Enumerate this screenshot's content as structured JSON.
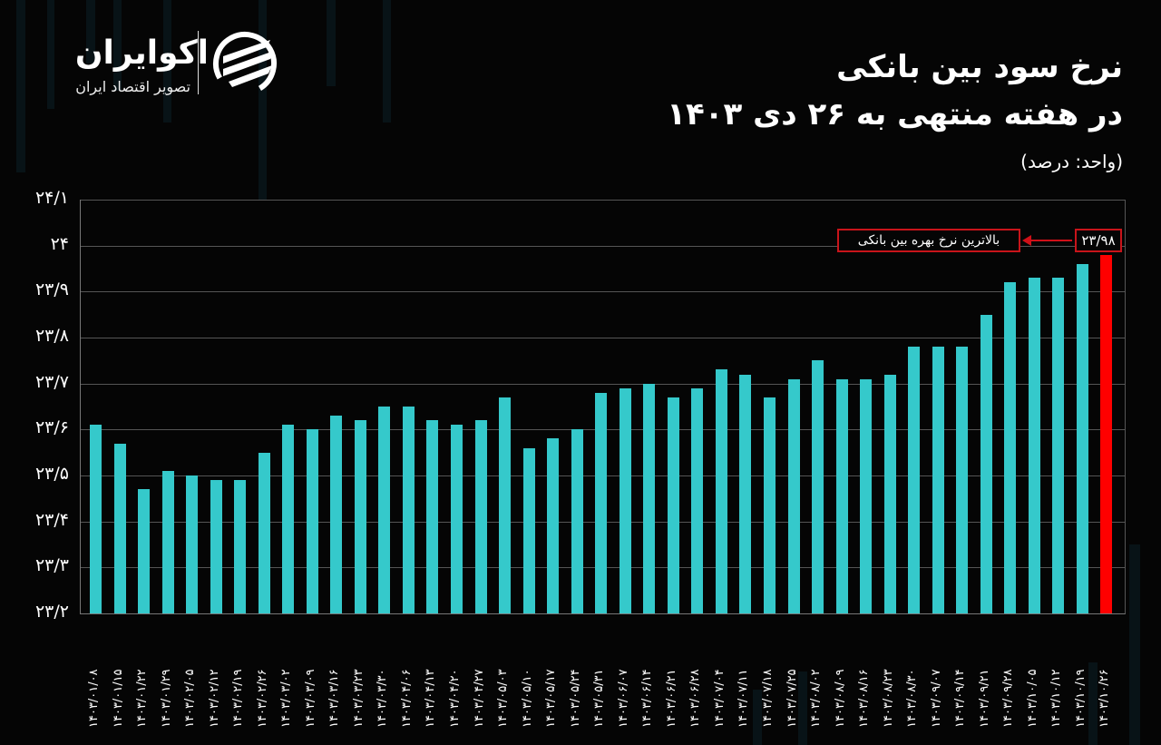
{
  "brand": {
    "name": "اکوایران",
    "tagline": "تصویر اقتصاد ایران"
  },
  "header": {
    "title_line1": "نرخ سود بین بانکی",
    "title_line2": "در هفته منتهی به ۲۶ دی ۱۴۰۳",
    "unit": "(واحد: درصد)"
  },
  "annotation": {
    "label": "بالاترین نرخ بهره بین بانکی",
    "value": "۲۳/۹۸"
  },
  "colors": {
    "bar": "#35c9cb",
    "highlight": "#ff0000",
    "background": "#050505"
  },
  "chart_data": {
    "type": "bar",
    "title": "نرخ سود بین بانکی در هفته منتهی به ۲۶ دی ۱۴۰۳",
    "subtitle": "(واحد: درصد)",
    "xlabel": "",
    "ylabel": "درصد",
    "ylim": [
      23.2,
      24.1
    ],
    "yticks": [
      "۲۳/۲",
      "۲۳/۳",
      "۲۳/۴",
      "۲۳/۵",
      "۲۳/۶",
      "۲۳/۷",
      "۲۳/۸",
      "۲۳/۹",
      "۲۴",
      "۲۴/۱"
    ],
    "grid": true,
    "legend": null,
    "categories": [
      "۱۴۰۳/۰۱/۰۸",
      "۱۴۰۳/۰۱/۱۵",
      "۱۴۰۳/۰۱/۲۲",
      "۱۴۰۳/۰۱/۲۹",
      "۱۴۰۳/۰۲/۰۵",
      "۱۴۰۳/۰۲/۱۲",
      "۱۴۰۳/۰۲/۱۹",
      "۱۴۰۳/۰۲/۲۶",
      "۱۴۰۳/۰۳/۰۲",
      "۱۴۰۳/۰۳/۰۹",
      "۱۴۰۳/۰۳/۱۶",
      "۱۴۰۳/۰۳/۲۳",
      "۱۴۰۳/۰۳/۳۰",
      "۱۴۰۳/۰۴/۰۶",
      "۱۴۰۳/۰۴/۱۳",
      "۱۴۰۳/۰۴/۲۰",
      "۱۴۰۳/۰۴/۲۷",
      "۱۴۰۳/۰۵/۰۳",
      "۱۴۰۳/۰۵/۱۰",
      "۱۴۰۳/۰۵/۱۷",
      "۱۴۰۳/۰۵/۲۴",
      "۱۴۰۳/۰۵/۳۱",
      "۱۴۰۳/۰۶/۰۷",
      "۱۴۰۳/۰۶/۱۴",
      "۱۴۰۳/۰۶/۲۱",
      "۱۴۰۳/۰۶/۲۸",
      "۱۴۰۳/۰۷/۰۴",
      "۱۴۰۳/۰۷/۱۱",
      "۱۴۰۳/۰۷/۱۸",
      "۱۴۰۳/۰۷/۲۵",
      "۱۴۰۳/۰۸/۰۲",
      "۱۴۰۳/۰۸/۰۹",
      "۱۴۰۳/۰۸/۱۶",
      "۱۴۰۳/۰۸/۲۳",
      "۱۴۰۳/۰۸/۳۰",
      "۱۴۰۳/۰۹/۰۷",
      "۱۴۰۳/۰۹/۱۴",
      "۱۴۰۳/۰۹/۲۱",
      "۱۴۰۳/۰۹/۲۸",
      "۱۴۰۳/۱۰/۰۵",
      "۱۴۰۳/۱۰/۱۲",
      "۱۴۰۳/۱۰/۱۹",
      "۱۴۰۳/۱۰/۲۶"
    ],
    "values": [
      23.61,
      23.57,
      23.47,
      23.51,
      23.5,
      23.49,
      23.49,
      23.55,
      23.61,
      23.6,
      23.63,
      23.62,
      23.65,
      23.65,
      23.62,
      23.61,
      23.62,
      23.67,
      23.56,
      23.58,
      23.6,
      23.68,
      23.69,
      23.7,
      23.67,
      23.69,
      23.73,
      23.72,
      23.67,
      23.71,
      23.75,
      23.71,
      23.71,
      23.72,
      23.78,
      23.78,
      23.78,
      23.85,
      23.92,
      23.93,
      23.93,
      23.96,
      23.98
    ],
    "highlight_index": 42,
    "annotations": [
      {
        "text": "بالاترین نرخ بهره بین بانکی",
        "value": "۲۳/۹۸",
        "target": "۱۴۰۳/۱۰/۲۶"
      }
    ]
  }
}
